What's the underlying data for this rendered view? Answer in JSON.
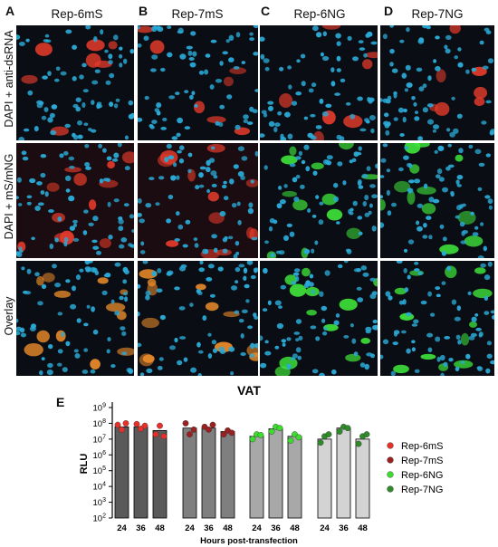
{
  "figure": {
    "panels": [
      {
        "letter": "A",
        "title": "Rep-6mS",
        "channel": "mS"
      },
      {
        "letter": "B",
        "title": "Rep-7mS",
        "channel": "mS"
      },
      {
        "letter": "C",
        "title": "Rep-6NG",
        "channel": "NG"
      },
      {
        "letter": "D",
        "title": "Rep-7NG",
        "channel": "NG"
      }
    ],
    "row_labels": [
      "DAPI + anti-dsRNA",
      "DAPI + mS/mNG",
      "Overlay"
    ],
    "chart_letter": "E",
    "colors": {
      "nuclei": "#2aa9d6",
      "red_signal": "#e03a2a",
      "green_signal": "#3ee23a",
      "background": "#0b0d14"
    }
  },
  "chart_data": {
    "type": "bar",
    "title": "VAT",
    "ylabel": "RLU",
    "xlabel": "Hours post-transfection",
    "yscale": "log",
    "ylim": [
      100,
      1000000000
    ],
    "yticks": [
      "10^2",
      "10^3",
      "10^4",
      "10^5",
      "10^6",
      "10^7",
      "10^8",
      "10^9"
    ],
    "categories": [
      "24",
      "36",
      "48"
    ],
    "series": [
      {
        "name": "Rep-6mS",
        "bar_color": "#5a5a5a",
        "dot_color": "#e8302a",
        "values": [
          60000000,
          60000000,
          35000000
        ],
        "points": [
          [
            80000000,
            40000000,
            100000000
          ],
          [
            90000000,
            45000000,
            70000000
          ],
          [
            20000000,
            70000000,
            15000000
          ]
        ]
      },
      {
        "name": "Rep-7mS",
        "bar_color": "#7f7f7f",
        "dot_color": "#9b2020",
        "values": [
          50000000,
          50000000,
          30000000
        ],
        "points": [
          [
            100000000,
            20000000,
            40000000
          ],
          [
            60000000,
            40000000,
            80000000
          ],
          [
            20000000,
            35000000,
            25000000
          ]
        ]
      },
      {
        "name": "Rep-6NG",
        "bar_color": "#a8a8a8",
        "dot_color": "#3ddc2f",
        "values": [
          15000000,
          45000000,
          15000000
        ],
        "points": [
          [
            10000000,
            20000000,
            18000000
          ],
          [
            30000000,
            60000000,
            50000000
          ],
          [
            8000000,
            20000000,
            13000000
          ]
        ]
      },
      {
        "name": "Rep-7NG",
        "bar_color": "#d3d3d3",
        "dot_color": "#2f8a2a",
        "values": [
          10000000,
          50000000,
          10000000
        ],
        "points": [
          [
            6000000,
            15000000,
            20000000
          ],
          [
            30000000,
            60000000,
            50000000
          ],
          [
            5000000,
            15000000,
            20000000
          ]
        ]
      }
    ]
  }
}
